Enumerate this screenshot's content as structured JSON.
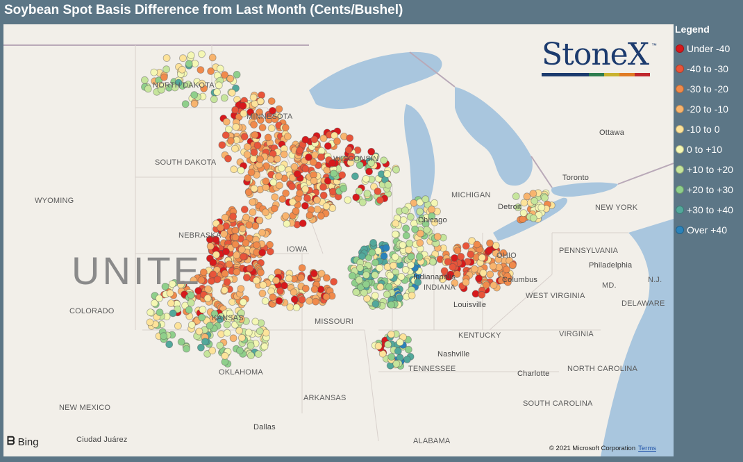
{
  "title": "Soybean Spot Basis Difference from Last Month (Cents/Bushel)",
  "legend": {
    "title": "Legend",
    "items": [
      {
        "label": "Under -40",
        "color": "#d7191c"
      },
      {
        "label": "-40 to -30",
        "color": "#e8553a"
      },
      {
        "label": "-30 to -20",
        "color": "#f08a4b"
      },
      {
        "label": "-20 to -10",
        "color": "#f8b46e"
      },
      {
        "label": "-10 to 0",
        "color": "#fde39a"
      },
      {
        "label": "0 to +10",
        "color": "#f4f7b4"
      },
      {
        "label": "+10 to +20",
        "color": "#c6e59c"
      },
      {
        "label": "+20 to +30",
        "color": "#8fcf8b"
      },
      {
        "label": "+30 to +40",
        "color": "#52a89b"
      },
      {
        "label": "Over +40",
        "color": "#2b83ba"
      }
    ]
  },
  "logo": {
    "text": "StoneX",
    "tm": "™",
    "bar_colors": [
      "#1c3b6e",
      "#1c3b6e",
      "#2e7d4f",
      "#c9b22f",
      "#e07b24",
      "#c0272d"
    ]
  },
  "map": {
    "big_label": "UNITE",
    "labels": [
      {
        "id": "north-dakota",
        "text": "NORTH DAKOTA"
      },
      {
        "id": "minnesota",
        "text": "MINNESOTA"
      },
      {
        "id": "south-dakota",
        "text": "SOUTH DAKOTA"
      },
      {
        "id": "wisconsin",
        "text": "WISCONSIN"
      },
      {
        "id": "wyoming",
        "text": "WYOMING"
      },
      {
        "id": "nebraska",
        "text": "NEBRASKA"
      },
      {
        "id": "iowa",
        "text": "IOWA"
      },
      {
        "id": "michigan",
        "text": "MICHIGAN"
      },
      {
        "id": "detroit",
        "text": "Detroit"
      },
      {
        "id": "toronto",
        "text": "Toronto"
      },
      {
        "id": "ottawa",
        "text": "Ottawa"
      },
      {
        "id": "new-york",
        "text": "NEW YORK"
      },
      {
        "id": "chicago",
        "text": "Chicago"
      },
      {
        "id": "pennsylvania",
        "text": "PENNSYLVANIA"
      },
      {
        "id": "philadelphia",
        "text": "Philadelphia"
      },
      {
        "id": "ohio",
        "text": "OHIO"
      },
      {
        "id": "indiana",
        "text": "INDIANA"
      },
      {
        "id": "indianapolis",
        "text": "Indianapolis"
      },
      {
        "id": "columbus",
        "text": "Columbus"
      },
      {
        "id": "md",
        "text": "MD."
      },
      {
        "id": "nj",
        "text": "N.J."
      },
      {
        "id": "delaware",
        "text": "DELAWARE"
      },
      {
        "id": "colorado",
        "text": "COLORADO"
      },
      {
        "id": "kansas",
        "text": "KANSAS"
      },
      {
        "id": "missouri",
        "text": "MISSOURI"
      },
      {
        "id": "louisville",
        "text": "Louisville"
      },
      {
        "id": "west-virginia",
        "text": "WEST VIRGINIA"
      },
      {
        "id": "virginia",
        "text": "VIRGINIA"
      },
      {
        "id": "kentucky",
        "text": "KENTUCKY"
      },
      {
        "id": "nashville",
        "text": "Nashville"
      },
      {
        "id": "tennessee",
        "text": "TENNESSEE"
      },
      {
        "id": "oklahoma",
        "text": "OKLAHOMA"
      },
      {
        "id": "charlotte",
        "text": "Charlotte"
      },
      {
        "id": "north-carolina",
        "text": "NORTH CAROLINA"
      },
      {
        "id": "new-mexico",
        "text": "NEW MEXICO"
      },
      {
        "id": "arkansas",
        "text": "ARKANSAS"
      },
      {
        "id": "south-carolina",
        "text": "SOUTH CAROLINA"
      },
      {
        "id": "dallas",
        "text": "Dallas"
      },
      {
        "id": "alabama",
        "text": "ALABAMA"
      },
      {
        "id": "ciudad-juarez",
        "text": "Ciudad Juárez"
      }
    ]
  },
  "attribution": {
    "bing": "Bing",
    "copyright": "© 2021 Microsoft Corporation",
    "terms": "Terms"
  }
}
